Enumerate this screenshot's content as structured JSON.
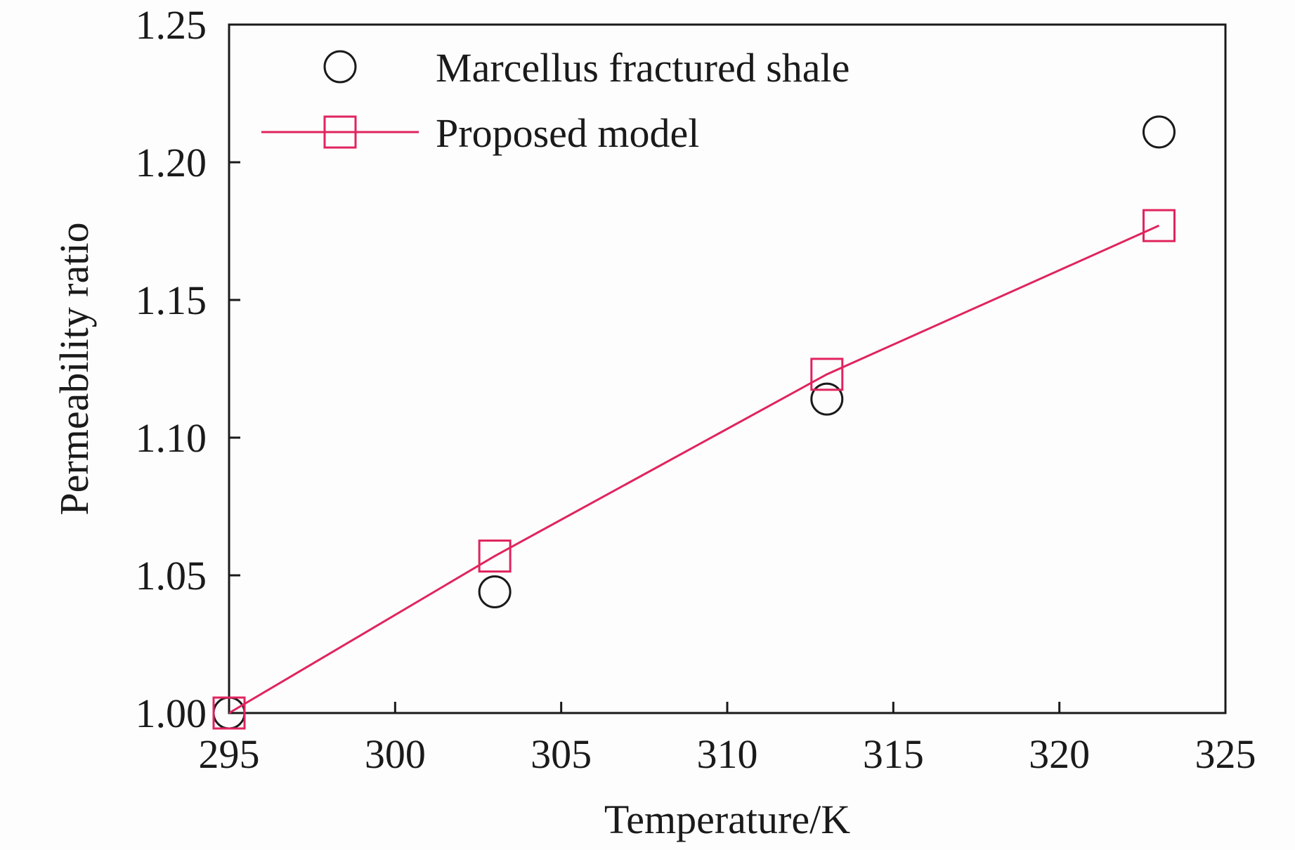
{
  "chart_data": {
    "type": "scatter",
    "title": "",
    "xlabel": "Temperature/K",
    "ylabel": "Permeability ratio",
    "xlim": [
      295,
      325
    ],
    "ylim": [
      1.0,
      1.25
    ],
    "xticks": [
      "295",
      "300",
      "305",
      "310",
      "315",
      "320",
      "325"
    ],
    "yticks": [
      "1.00",
      "1.05",
      "1.10",
      "1.15",
      "1.20",
      "1.25"
    ],
    "grid": false,
    "legend_position": "top-left",
    "series": [
      {
        "name": "Marcellus fractured shale",
        "marker": "circle",
        "line": false,
        "color": "#1a1a1a",
        "x": [
          295,
          303,
          313,
          323
        ],
        "y": [
          1.0,
          1.044,
          1.114,
          1.211
        ]
      },
      {
        "name": "Proposed model",
        "marker": "square",
        "line": true,
        "color": "#e0245e",
        "x": [
          295,
          303,
          313,
          323
        ],
        "y": [
          1.0,
          1.057,
          1.123,
          1.177
        ]
      }
    ]
  }
}
